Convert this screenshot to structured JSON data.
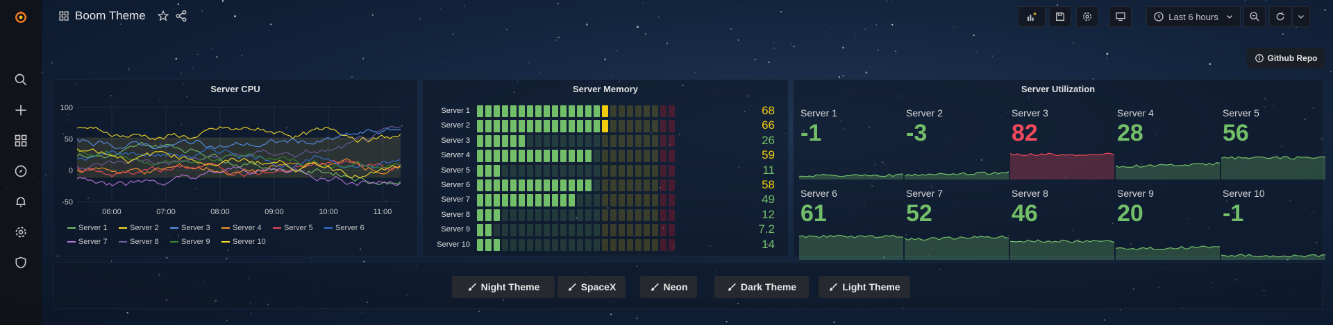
{
  "dashboard": {
    "title": "Boom Theme"
  },
  "toolbar": {
    "time_range": "Last 6 hours"
  },
  "github": {
    "label": "Github Repo"
  },
  "cpu_panel": {
    "title": "Server CPU"
  },
  "memory_panel": {
    "title": "Server Memory"
  },
  "util_panel": {
    "title": "Server Utilization"
  },
  "chart_data": {
    "type": "line",
    "title": "Server CPU",
    "x_ticks": [
      "06:00",
      "07:00",
      "08:00",
      "09:00",
      "10:00",
      "11:00"
    ],
    "y_ticks": [
      "100",
      "50",
      "0",
      "-50"
    ],
    "ylim": [
      -50,
      100
    ],
    "series": [
      {
        "name": "Server 1",
        "color": "#73bf69"
      },
      {
        "name": "Server 2",
        "color": "#fade2a"
      },
      {
        "name": "Server 3",
        "color": "#5794f2"
      },
      {
        "name": "Server 4",
        "color": "#ff9830"
      },
      {
        "name": "Server 5",
        "color": "#f2495c"
      },
      {
        "name": "Server 6",
        "color": "#3274d9"
      },
      {
        "name": "Server 7",
        "color": "#b877d9"
      },
      {
        "name": "Server 8",
        "color": "#705da0"
      },
      {
        "name": "Server 9",
        "color": "#37872d"
      },
      {
        "name": "Server 10",
        "color": "#fade2a"
      }
    ]
  },
  "memory": [
    {
      "name": "Server 1",
      "value": "68",
      "color": "#f2cc0c"
    },
    {
      "name": "Server 2",
      "value": "66",
      "color": "#f2cc0c"
    },
    {
      "name": "Server 3",
      "value": "26",
      "color": "#73bf69"
    },
    {
      "name": "Server 4",
      "value": "59",
      "color": "#f2cc0c"
    },
    {
      "name": "Server 5",
      "value": "11",
      "color": "#73bf69"
    },
    {
      "name": "Server 6",
      "value": "58",
      "color": "#f2cc0c"
    },
    {
      "name": "Server 7",
      "value": "49",
      "color": "#73bf69"
    },
    {
      "name": "Server 8",
      "value": "12",
      "color": "#73bf69"
    },
    {
      "name": "Server 9",
      "value": "7.2",
      "color": "#73bf69"
    },
    {
      "name": "Server 10",
      "value": "14",
      "color": "#73bf69"
    }
  ],
  "utilization": [
    {
      "name": "Server 1",
      "value": "-1",
      "color": "#73bf69"
    },
    {
      "name": "Server 2",
      "value": "-3",
      "color": "#73bf69"
    },
    {
      "name": "Server 3",
      "value": "82",
      "color": "#f2495c"
    },
    {
      "name": "Server 4",
      "value": "28",
      "color": "#73bf69"
    },
    {
      "name": "Server 5",
      "value": "56",
      "color": "#73bf69"
    },
    {
      "name": "Server 6",
      "value": "61",
      "color": "#73bf69"
    },
    {
      "name": "Server 7",
      "value": "52",
      "color": "#73bf69"
    },
    {
      "name": "Server 8",
      "value": "46",
      "color": "#73bf69"
    },
    {
      "name": "Server 9",
      "value": "20",
      "color": "#73bf69"
    },
    {
      "name": "Server 10",
      "value": "-1",
      "color": "#73bf69"
    }
  ],
  "themes": [
    {
      "label": "Night Theme"
    },
    {
      "label": "SpaceX"
    },
    {
      "label": "Neon"
    },
    {
      "label": "Dark Theme"
    },
    {
      "label": "Light Theme"
    }
  ]
}
